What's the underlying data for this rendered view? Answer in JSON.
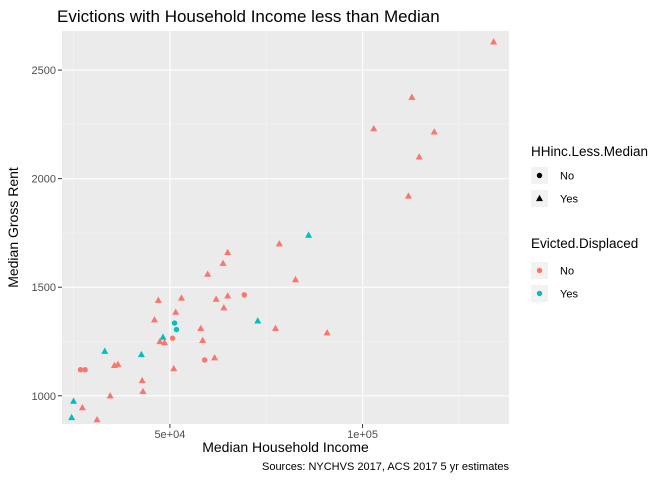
{
  "chart_data": {
    "type": "scatter",
    "title": "Evictions with Household Income less than Median",
    "xlabel": "Median Household Income",
    "ylabel": "Median Gross Rent",
    "caption": "Sources: NYCHVS 2017, ACS 2017 5 yr estimates",
    "xlim": [
      22000,
      138000
    ],
    "ylim": [
      870,
      2680
    ],
    "x_ticks": [
      {
        "value": 50000,
        "label": "5e+04"
      },
      {
        "value": 100000,
        "label": "1e+05"
      }
    ],
    "y_ticks": [
      {
        "value": 1000,
        "label": "1000"
      },
      {
        "value": 1500,
        "label": "1500"
      },
      {
        "value": 2000,
        "label": "2000"
      },
      {
        "value": 2500,
        "label": "2500"
      }
    ],
    "grid": true,
    "legend_position": "right",
    "legends": [
      {
        "name": "shape",
        "title": "HHinc.Less.Median",
        "entries": [
          {
            "label": "No",
            "symbol": "circle"
          },
          {
            "label": "Yes",
            "symbol": "triangle"
          }
        ]
      },
      {
        "name": "color",
        "title": "Evicted.Displaced",
        "entries": [
          {
            "label": "No",
            "color": "#F8766D"
          },
          {
            "label": "Yes",
            "color": "#00BFC4"
          }
        ]
      }
    ],
    "colors": {
      "No": "#F8766D",
      "Yes": "#00BFC4"
    },
    "points": [
      {
        "x": 134000,
        "y": 2630,
        "hh": "Yes",
        "ev": "No"
      },
      {
        "x": 112800,
        "y": 2375,
        "hh": "Yes",
        "ev": "No"
      },
      {
        "x": 102900,
        "y": 2230,
        "hh": "Yes",
        "ev": "No"
      },
      {
        "x": 118600,
        "y": 2215,
        "hh": "Yes",
        "ev": "No"
      },
      {
        "x": 114700,
        "y": 2100,
        "hh": "Yes",
        "ev": "No"
      },
      {
        "x": 111900,
        "y": 1920,
        "hh": "Yes",
        "ev": "No"
      },
      {
        "x": 86000,
        "y": 1740,
        "hh": "Yes",
        "ev": "Yes"
      },
      {
        "x": 78400,
        "y": 1700,
        "hh": "Yes",
        "ev": "No"
      },
      {
        "x": 65000,
        "y": 1660,
        "hh": "Yes",
        "ev": "No"
      },
      {
        "x": 63800,
        "y": 1610,
        "hh": "Yes",
        "ev": "No"
      },
      {
        "x": 59800,
        "y": 1560,
        "hh": "Yes",
        "ev": "No"
      },
      {
        "x": 82600,
        "y": 1535,
        "hh": "Yes",
        "ev": "No"
      },
      {
        "x": 69300,
        "y": 1465,
        "hh": "No",
        "ev": "No"
      },
      {
        "x": 65000,
        "y": 1460,
        "hh": "Yes",
        "ev": "No"
      },
      {
        "x": 53000,
        "y": 1450,
        "hh": "Yes",
        "ev": "No"
      },
      {
        "x": 62000,
        "y": 1445,
        "hh": "Yes",
        "ev": "No"
      },
      {
        "x": 47000,
        "y": 1440,
        "hh": "Yes",
        "ev": "No"
      },
      {
        "x": 64000,
        "y": 1405,
        "hh": "Yes",
        "ev": "No"
      },
      {
        "x": 51500,
        "y": 1385,
        "hh": "Yes",
        "ev": "No"
      },
      {
        "x": 46000,
        "y": 1350,
        "hh": "Yes",
        "ev": "No"
      },
      {
        "x": 72800,
        "y": 1345,
        "hh": "Yes",
        "ev": "Yes"
      },
      {
        "x": 51200,
        "y": 1335,
        "hh": "No",
        "ev": "Yes"
      },
      {
        "x": 58000,
        "y": 1310,
        "hh": "Yes",
        "ev": "No"
      },
      {
        "x": 77400,
        "y": 1310,
        "hh": "Yes",
        "ev": "No"
      },
      {
        "x": 51700,
        "y": 1305,
        "hh": "No",
        "ev": "Yes"
      },
      {
        "x": 90800,
        "y": 1290,
        "hh": "Yes",
        "ev": "No"
      },
      {
        "x": 48200,
        "y": 1270,
        "hh": "Yes",
        "ev": "Yes"
      },
      {
        "x": 50700,
        "y": 1265,
        "hh": "No",
        "ev": "No"
      },
      {
        "x": 58500,
        "y": 1255,
        "hh": "Yes",
        "ev": "No"
      },
      {
        "x": 47400,
        "y": 1250,
        "hh": "Yes",
        "ev": "No"
      },
      {
        "x": 48600,
        "y": 1245,
        "hh": "Yes",
        "ev": "No"
      },
      {
        "x": 33100,
        "y": 1205,
        "hh": "Yes",
        "ev": "Yes"
      },
      {
        "x": 42600,
        "y": 1190,
        "hh": "Yes",
        "ev": "Yes"
      },
      {
        "x": 61600,
        "y": 1175,
        "hh": "Yes",
        "ev": "No"
      },
      {
        "x": 59000,
        "y": 1165,
        "hh": "No",
        "ev": "No"
      },
      {
        "x": 35600,
        "y": 1140,
        "hh": "Yes",
        "ev": "No"
      },
      {
        "x": 36500,
        "y": 1145,
        "hh": "Yes",
        "ev": "No"
      },
      {
        "x": 51000,
        "y": 1125,
        "hh": "Yes",
        "ev": "No"
      },
      {
        "x": 26800,
        "y": 1120,
        "hh": "No",
        "ev": "No"
      },
      {
        "x": 28000,
        "y": 1120,
        "hh": "No",
        "ev": "No"
      },
      {
        "x": 42800,
        "y": 1070,
        "hh": "Yes",
        "ev": "No"
      },
      {
        "x": 43000,
        "y": 1020,
        "hh": "Yes",
        "ev": "No"
      },
      {
        "x": 34500,
        "y": 1000,
        "hh": "Yes",
        "ev": "No"
      },
      {
        "x": 25000,
        "y": 975,
        "hh": "Yes",
        "ev": "Yes"
      },
      {
        "x": 27300,
        "y": 945,
        "hh": "Yes",
        "ev": "No"
      },
      {
        "x": 24500,
        "y": 900,
        "hh": "Yes",
        "ev": "Yes"
      },
      {
        "x": 31100,
        "y": 890,
        "hh": "Yes",
        "ev": "No"
      }
    ]
  }
}
